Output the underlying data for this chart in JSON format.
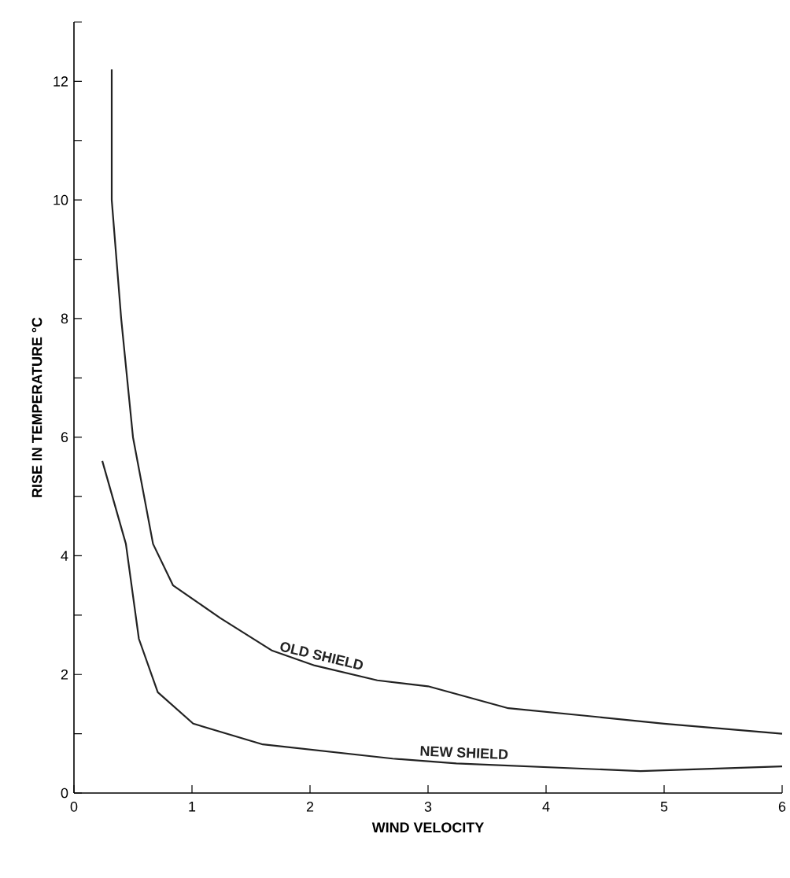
{
  "chart_data": {
    "type": "line",
    "xlabel": "WIND VELOCITY",
    "ylabel": "RISE IN TEMPERATURE °C",
    "xlim": [
      0,
      6
    ],
    "ylim": [
      0,
      13
    ],
    "xticks": [
      0,
      1,
      2,
      3,
      4,
      5,
      6
    ],
    "yticks": [
      0,
      {
        "value": 1,
        "label": null
      },
      2,
      {
        "value": 3,
        "label": null
      },
      4,
      {
        "value": 5,
        "label": null
      },
      6,
      {
        "value": 7,
        "label": null
      },
      8,
      {
        "value": 9,
        "label": null
      },
      10,
      {
        "value": 11,
        "label": null
      },
      12,
      {
        "value": 13,
        "label": null
      }
    ],
    "grid": false,
    "marker": "none",
    "line_style": "solid",
    "series": [
      {
        "name": "OLD SHIELD",
        "color": "#222222",
        "x": [
          0.32,
          0.32,
          0.4,
          0.5,
          0.67,
          0.84,
          1.24,
          1.68,
          2.04,
          2.57,
          3.0,
          3.68,
          4.35,
          5.0,
          6.0
        ],
        "values": [
          12.2,
          10,
          8,
          6,
          4.2,
          3.5,
          2.95,
          2.4,
          2.15,
          1.9,
          1.8,
          1.43,
          1.3,
          1.17,
          1.0
        ]
      },
      {
        "name": "NEW SHIELD",
        "color": "#222222",
        "x": [
          0.24,
          0.44,
          0.55,
          0.71,
          1.01,
          1.6,
          2.7,
          3.24,
          4.8,
          6.0
        ],
        "values": [
          5.6,
          4.2,
          2.6,
          1.7,
          1.17,
          0.82,
          0.58,
          0.5,
          0.37,
          0.45
        ]
      }
    ]
  }
}
